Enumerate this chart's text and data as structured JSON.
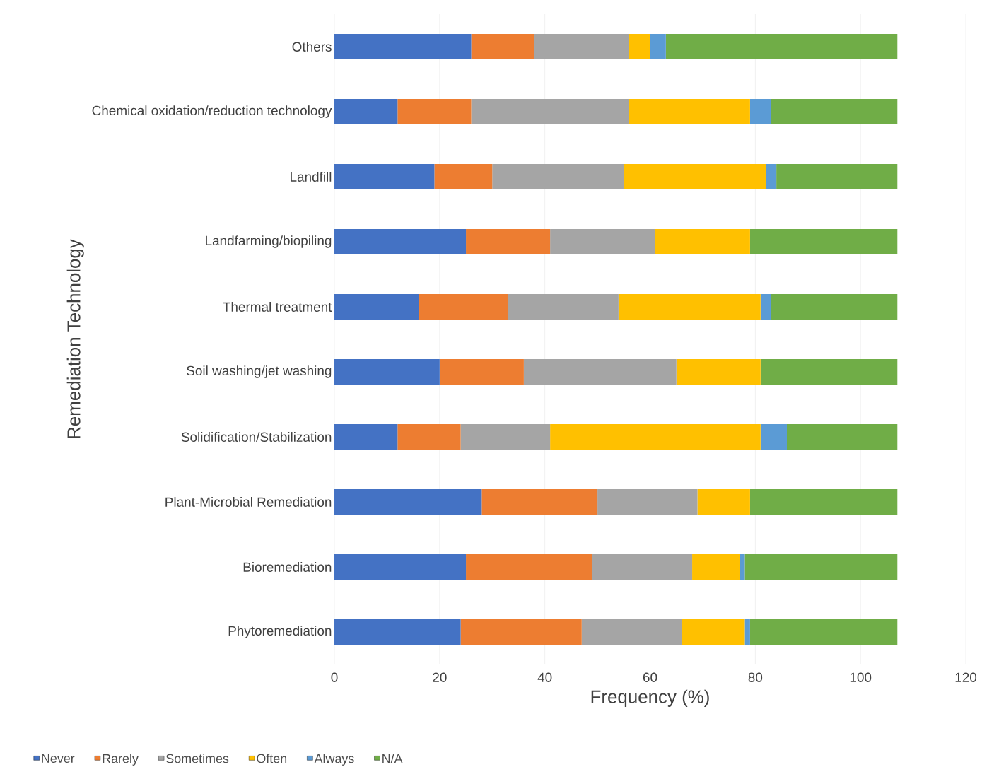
{
  "chart_data": {
    "type": "bar",
    "orientation": "horizontal",
    "stacked": true,
    "xlabel": "Frequency (%)",
    "ylabel": "Remediation Technology",
    "categories": [
      "Others",
      "Chemical oxidation/reduction technology",
      "Landfill",
      "Landfarming/biopiling",
      "Thermal treatment",
      "Soil washing/jet washing",
      "Solidification/Stabilization",
      "Plant-Microbial Remediation",
      "Bioremediation",
      "Phytoremediation"
    ],
    "series": [
      {
        "name": "Never",
        "color": "#4472c4",
        "values": [
          26,
          12,
          19,
          25,
          16,
          20,
          12,
          28,
          25,
          24
        ]
      },
      {
        "name": "Rarely",
        "color": "#ed7d31",
        "values": [
          12,
          14,
          11,
          16,
          17,
          16,
          12,
          22,
          24,
          23
        ]
      },
      {
        "name": "Sometimes",
        "color": "#a5a5a5",
        "values": [
          18,
          30,
          25,
          20,
          21,
          29,
          17,
          19,
          19,
          19
        ]
      },
      {
        "name": "Often",
        "color": "#ffc000",
        "values": [
          4,
          23,
          27,
          18,
          27,
          16,
          40,
          10,
          9,
          12
        ]
      },
      {
        "name": "Always",
        "color": "#5b9bd5",
        "values": [
          3,
          4,
          2,
          0,
          2,
          0,
          5,
          0,
          1,
          1
        ]
      },
      {
        "name": "N/A",
        "color": "#70ad47",
        "values": [
          44,
          24,
          23,
          28,
          24,
          26,
          21,
          28,
          29,
          28
        ]
      }
    ],
    "xlim": [
      0,
      120
    ],
    "xticks": [
      0,
      20,
      40,
      60,
      80,
      100,
      120
    ],
    "grid": "x",
    "legend": "bottom left"
  }
}
